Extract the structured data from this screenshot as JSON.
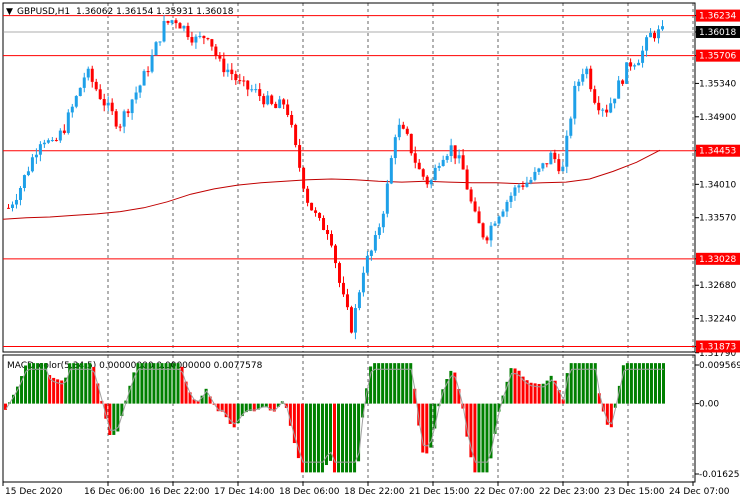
{
  "header": {
    "symbol_label": "GBPUSD,H1",
    "ohlc": "1.36062 1.36154 1.35931 1.36018",
    "macd_label": "MACD_color(5,34,5) 0.00000000 0.00000000 0.0077578"
  },
  "colors": {
    "bull": "#1ea0e8",
    "bear": "#ff0000",
    "hline": "#ff0000",
    "ma": "#c00000",
    "macd_up": "#008000",
    "macd_down": "#ff0000",
    "signal": "#a0a0a0",
    "grid": "#000000"
  },
  "chart_data": [
    {
      "type": "candlestick",
      "ylim": [
        1.318,
        1.364
      ],
      "price_ticks": [
        "1.36234",
        "1.36018",
        "1.35706",
        "1.35340",
        "1.34900",
        "1.34453",
        "1.34010",
        "1.33570",
        "1.33028",
        "1.32680",
        "1.32240",
        "1.31873",
        "1.31790"
      ],
      "hlines": [
        {
          "value": 1.36234,
          "label": "1.36234"
        },
        {
          "value": 1.35706,
          "label": "1.35706"
        },
        {
          "value": 1.34453,
          "label": "1.34453"
        },
        {
          "value": 1.33028,
          "label": "1.33028"
        },
        {
          "value": 1.31873,
          "label": "1.31873"
        }
      ],
      "current_price": {
        "value": 1.36018,
        "label": "1.36018"
      },
      "x_labels": [
        "15 Dec 2020",
        "16 Dec 06:00",
        "16 Dec 22:00",
        "17 Dec 14:00",
        "18 Dec 06:00",
        "18 Dec 22:00",
        "21 Dec 15:00",
        "22 Dec 07:00",
        "22 Dec 23:00",
        "23 Dec 15:00",
        "24 Dec 07:00"
      ],
      "close_path": [
        1.337,
        1.3395,
        1.343,
        1.3465,
        1.345,
        1.3475,
        1.351,
        1.355,
        1.3525,
        1.35,
        1.348,
        1.351,
        1.3535,
        1.357,
        1.361,
        1.362,
        1.3605,
        1.359,
        1.36,
        1.356,
        1.355,
        1.353,
        1.3525,
        1.3515,
        1.35,
        1.351,
        1.344,
        1.338,
        1.335,
        1.334,
        1.326,
        1.321,
        1.329,
        1.332,
        1.338,
        1.348,
        1.346,
        1.342,
        1.34,
        1.344,
        1.345,
        1.342,
        1.336,
        1.333,
        1.336,
        1.338,
        1.34,
        1.3405,
        1.342,
        1.344,
        1.342,
        1.352,
        1.356,
        1.351,
        1.35,
        1.353,
        1.356,
        1.357,
        1.36,
        1.3601
      ],
      "ma_path": [
        1.3355,
        1.3357,
        1.3358,
        1.336,
        1.3362,
        1.3365,
        1.337,
        1.3378,
        1.3388,
        1.3395,
        1.34,
        1.3403,
        1.3405,
        1.3407,
        1.3408,
        1.3407,
        1.3405,
        1.3404,
        1.3405,
        1.3404,
        1.3403,
        1.3403,
        1.3402,
        1.3403,
        1.3404,
        1.3408,
        1.3418,
        1.343,
        1.3446
      ],
      "macd_ticks": [
        "0.0095695",
        "0.00",
        "-0.0162540"
      ],
      "macd_range": [
        -0.016254,
        0.0095695
      ]
    }
  ]
}
